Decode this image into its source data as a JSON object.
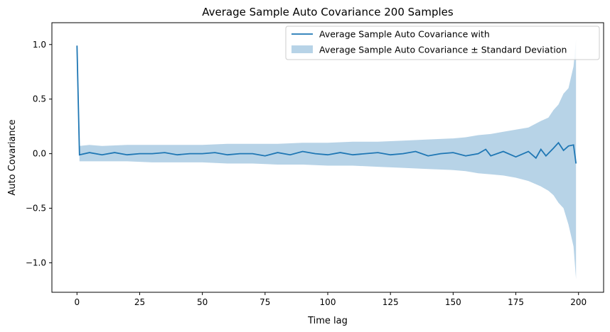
{
  "chart_data": {
    "type": "line",
    "title": "Average Sample Auto Covariance 200 Samples",
    "xlabel": "Time lag",
    "ylabel": "Auto Covariance",
    "xlim": [
      -10,
      210
    ],
    "ylim": [
      -1.27,
      1.2
    ],
    "xticks": [
      0,
      25,
      50,
      75,
      100,
      125,
      150,
      175,
      200
    ],
    "yticks": [
      -1.0,
      -0.5,
      0.0,
      0.5,
      1.0
    ],
    "ytick_labels": [
      "−1.0",
      "−0.5",
      "0.0",
      "0.5",
      "1.0"
    ],
    "grid": false,
    "legend_position": "top-right",
    "series": [
      {
        "name": "Average Sample Auto Covariance with",
        "kind": "line",
        "color": "#1f77b4",
        "x": [
          0,
          1,
          5,
          10,
          15,
          20,
          25,
          30,
          35,
          40,
          45,
          50,
          55,
          60,
          65,
          70,
          75,
          80,
          85,
          90,
          95,
          100,
          105,
          110,
          115,
          120,
          125,
          130,
          135,
          140,
          145,
          150,
          155,
          160,
          163,
          165,
          170,
          175,
          180,
          183,
          185,
          187,
          190,
          192,
          194,
          196,
          198,
          199
        ],
        "y": [
          0.99,
          -0.01,
          0.01,
          -0.01,
          0.01,
          -0.01,
          0.0,
          0.0,
          0.01,
          -0.01,
          0.0,
          0.0,
          0.01,
          -0.01,
          0.0,
          0.0,
          -0.02,
          0.01,
          -0.01,
          0.02,
          0.0,
          -0.01,
          0.01,
          -0.01,
          0.0,
          0.01,
          -0.01,
          0.0,
          0.02,
          -0.02,
          0.0,
          0.01,
          -0.02,
          0.0,
          0.04,
          -0.02,
          0.02,
          -0.03,
          0.02,
          -0.04,
          0.04,
          -0.02,
          0.05,
          0.1,
          0.03,
          0.07,
          0.08,
          -0.09
        ]
      },
      {
        "name": "Average Sample Auto Covariance ± Standard Deviation",
        "kind": "band",
        "color": "#1f77b4",
        "opacity": 0.32,
        "x": [
          0,
          1,
          5,
          10,
          20,
          30,
          40,
          50,
          60,
          70,
          80,
          90,
          100,
          110,
          120,
          130,
          140,
          150,
          155,
          160,
          165,
          170,
          175,
          180,
          185,
          188,
          190,
          192,
          194,
          196,
          198,
          199
        ],
        "upper": [
          1.03,
          0.07,
          0.08,
          0.07,
          0.08,
          0.08,
          0.08,
          0.08,
          0.09,
          0.09,
          0.09,
          0.1,
          0.1,
          0.11,
          0.11,
          0.12,
          0.13,
          0.14,
          0.15,
          0.17,
          0.18,
          0.2,
          0.22,
          0.24,
          0.3,
          0.33,
          0.4,
          0.45,
          0.55,
          0.6,
          0.8,
          1.05
        ],
        "lower": [
          0.96,
          -0.07,
          -0.07,
          -0.07,
          -0.07,
          -0.08,
          -0.08,
          -0.08,
          -0.09,
          -0.09,
          -0.1,
          -0.1,
          -0.11,
          -0.11,
          -0.12,
          -0.13,
          -0.14,
          -0.15,
          -0.16,
          -0.18,
          -0.19,
          -0.2,
          -0.22,
          -0.25,
          -0.3,
          -0.34,
          -0.38,
          -0.45,
          -0.5,
          -0.65,
          -0.85,
          -1.15
        ]
      }
    ]
  }
}
